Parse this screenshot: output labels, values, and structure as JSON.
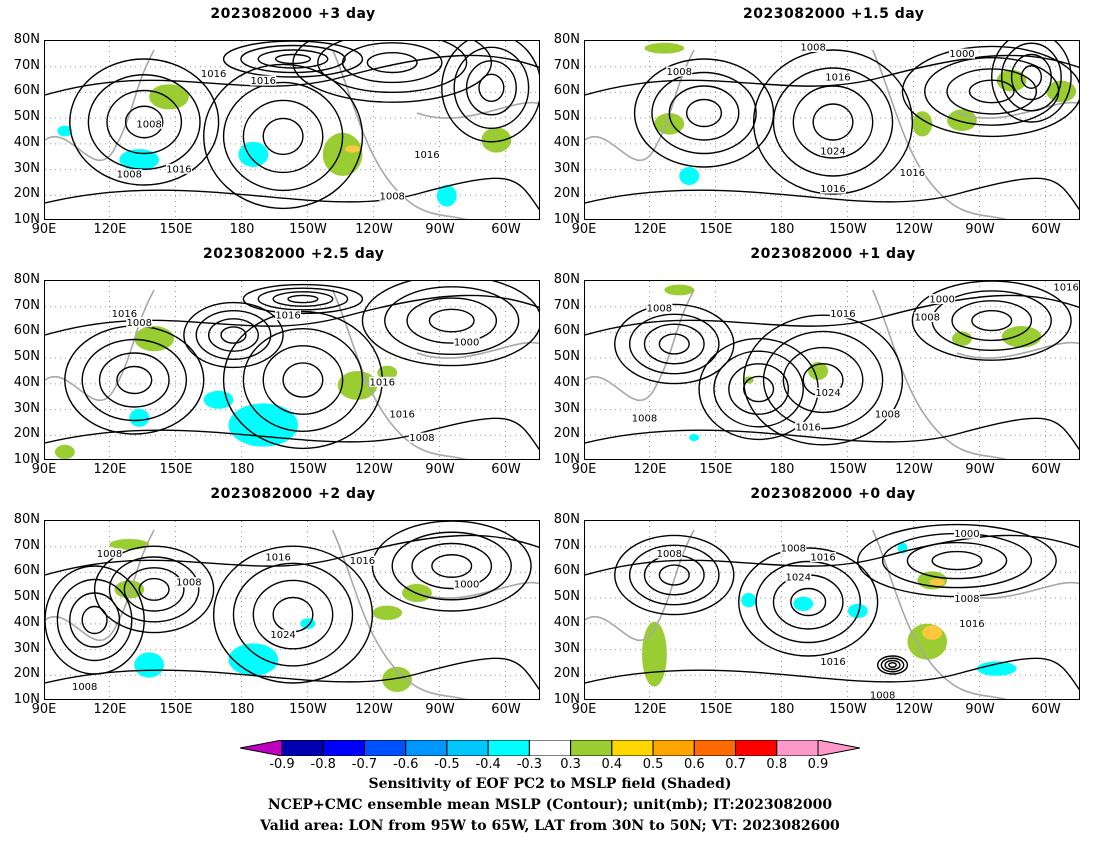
{
  "panels": [
    {
      "title": "2023082000  +3 day",
      "contours": [
        "1016",
        "1016",
        "1008",
        "1016",
        "1008",
        "1016",
        "1008"
      ]
    },
    {
      "title": "2023082000  +1.5 day",
      "contours": [
        "1008",
        "1000",
        "1008",
        "1016",
        "1024",
        "1016",
        "1016"
      ]
    },
    {
      "title": "2023082000  +2.5 day",
      "contours": [
        "1016",
        "1008",
        "1016",
        "1000",
        "1016",
        "1016",
        "1008"
      ]
    },
    {
      "title": "2023082000  +1 day",
      "contours": [
        "1016",
        "1008",
        "1000",
        "1008",
        "1016",
        "1024",
        "1008",
        "1008",
        "1016"
      ]
    },
    {
      "title": "2023082000  +2 day",
      "contours": [
        "1008",
        "1016",
        "1008",
        "1016",
        "1000",
        "1024",
        "1008"
      ]
    },
    {
      "title": "2023082000  +0 day",
      "contours": [
        "1008",
        "1008",
        "1016",
        "1000",
        "1024",
        "1008",
        "1016",
        "1016",
        "1008"
      ]
    }
  ],
  "axes": {
    "lat_labels": [
      "80N",
      "70N",
      "60N",
      "50N",
      "40N",
      "30N",
      "20N",
      "10N"
    ],
    "lon_labels": [
      "90E",
      "120E",
      "150E",
      "180",
      "150W",
      "120W",
      "90W",
      "60W"
    ]
  },
  "colorbar": {
    "labels": [
      "-0.9",
      "-0.8",
      "-0.7",
      "-0.6",
      "-0.5",
      "-0.4",
      "-0.3",
      "0.3",
      "0.4",
      "0.5",
      "0.6",
      "0.7",
      "0.8",
      "0.9"
    ],
    "colors": [
      "#c000c0",
      "#0000b0",
      "#0000ff",
      "#0050ff",
      "#0096ff",
      "#00c8ff",
      "#00ffff",
      "#ffffff",
      "#9acd32",
      "#ffd700",
      "#ffa500",
      "#ff6a00",
      "#ff0000",
      "#ff99cc"
    ]
  },
  "footer": {
    "line1": "Sensitivity of EOF PC2 to MSLP field (Shaded)",
    "line2": "NCEP+CMC ensemble mean MSLP (Contour); unit(mb); IT:2023082000",
    "line3": "Valid area: LON from 95W to 65W, LAT from 30N to 50N; VT: 2023082600"
  }
}
